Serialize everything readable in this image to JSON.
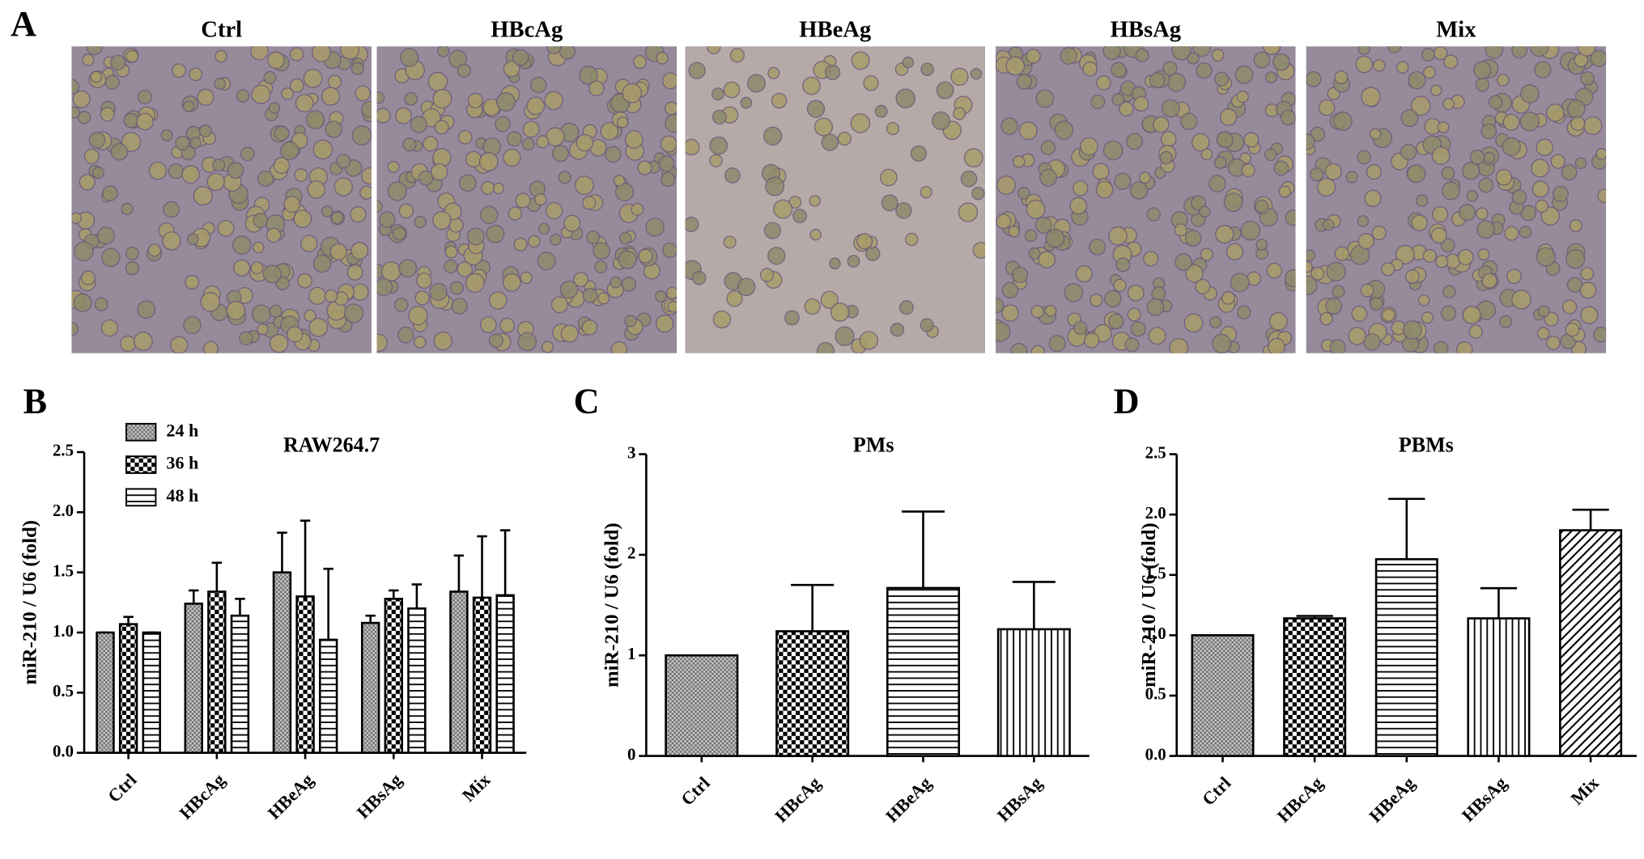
{
  "panel_a": {
    "label": "A",
    "titles": [
      "Ctrl",
      "HBcAg",
      "HBeAg",
      "HBsAg",
      "Mix"
    ]
  },
  "chart_data": [
    {
      "type": "bar",
      "panel": "B",
      "title": "RAW264.7",
      "y_label": "miR-210 / U6 (fold)",
      "categories": [
        "Ctrl",
        "HBcAg",
        "HBeAg",
        "HBsAg",
        "Mix"
      ],
      "series": [
        {
          "name": "24 h",
          "pattern": "fine",
          "values": [
            1.0,
            1.24,
            1.5,
            1.08,
            1.34
          ],
          "errors": [
            0.0,
            0.11,
            0.33,
            0.06,
            0.3
          ]
        },
        {
          "name": "36 h",
          "pattern": "checker",
          "values": [
            1.07,
            1.34,
            1.3,
            1.28,
            1.29
          ],
          "errors": [
            0.06,
            0.24,
            0.63,
            0.07,
            0.51
          ]
        },
        {
          "name": "48 h",
          "pattern": "hlines",
          "values": [
            1.0,
            1.14,
            0.94,
            1.2,
            1.31
          ],
          "errors": [
            0.0,
            0.14,
            0.59,
            0.2,
            0.54
          ]
        }
      ],
      "ylim": [
        0,
        2.5
      ],
      "yticks": [
        {
          "value": 0,
          "label": "0.0"
        },
        0.5,
        {
          "value": 1,
          "label": "1.0"
        },
        1.5,
        {
          "value": 2,
          "label": "2.0"
        },
        2.5
      ]
    },
    {
      "type": "bar",
      "panel": "C",
      "title": "PMs",
      "y_label": "miR-210 / U6 (fold)",
      "categories": [
        "Ctrl",
        "HBcAg",
        "HBeAg",
        "HBsAg"
      ],
      "values": [
        1.0,
        1.24,
        1.67,
        1.26
      ],
      "errors": [
        null,
        0.46,
        0.76,
        0.47
      ],
      "patterns": [
        "fine",
        "checker",
        "hlines",
        "vlines"
      ],
      "ylim": [
        0,
        3
      ],
      "yticks": [
        0,
        1,
        2,
        3
      ]
    },
    {
      "type": "bar",
      "panel": "D",
      "title": "PBMs",
      "y_label": "miR-210 / U6 (fold)",
      "categories": [
        "Ctrl",
        "HBcAg",
        "HBeAg",
        "HBsAg",
        "Mix"
      ],
      "values": [
        1.0,
        1.14,
        1.63,
        1.14,
        1.87
      ],
      "errors": [
        null,
        0.02,
        0.5,
        0.25,
        0.17
      ],
      "patterns": [
        "fine",
        "checker",
        "hlines",
        "vlines",
        "diag"
      ],
      "ylim": [
        0,
        2.5
      ],
      "yticks": [
        {
          "value": 0,
          "label": "0.0"
        },
        0.5,
        {
          "value": 1,
          "label": "1.0"
        },
        1.5,
        {
          "value": 2,
          "label": "2.0"
        },
        2.5
      ]
    }
  ]
}
